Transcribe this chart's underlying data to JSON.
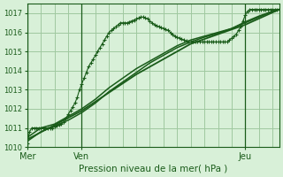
{
  "bg_color": "#d8f0d8",
  "grid_color": "#a0c8a0",
  "line_color": "#1a5c1a",
  "xlabel": "Pression niveau de la mer( hPa )",
  "xlabels": [
    "Mer",
    "Ven",
    "Jeu"
  ],
  "xtick_positions": [
    0,
    48,
    192
  ],
  "ylim": [
    1010,
    1017.5
  ],
  "yticks": [
    1010,
    1011,
    1012,
    1013,
    1014,
    1015,
    1016,
    1017
  ],
  "line1_x": [
    0,
    2,
    4,
    6,
    8,
    10,
    12,
    14,
    16,
    18,
    20,
    22,
    24,
    26,
    28,
    30,
    32,
    34,
    36,
    38,
    40,
    42,
    44,
    46,
    48,
    50,
    52,
    54,
    56,
    58,
    60,
    62,
    64,
    66,
    68,
    70,
    72,
    74,
    76,
    78,
    80,
    82,
    84,
    86,
    88,
    90,
    92,
    94,
    96,
    98,
    100,
    102,
    104,
    106,
    108,
    110,
    112,
    114,
    116,
    118,
    120,
    122,
    124,
    126,
    128,
    130,
    132,
    134,
    136,
    138,
    140,
    142,
    144,
    146,
    148,
    150,
    152,
    154,
    156,
    158,
    160,
    162,
    164,
    166,
    168,
    170,
    172,
    174,
    176,
    178,
    180,
    182,
    184,
    186,
    188,
    190,
    192,
    194,
    196,
    198,
    200,
    202,
    204,
    206,
    208,
    210,
    212,
    214,
    216,
    218,
    220,
    222
  ],
  "line1_y": [
    1010.2,
    1010.8,
    1011.0,
    1011.0,
    1011.0,
    1011.0,
    1011.0,
    1011.0,
    1011.0,
    1011.0,
    1011.0,
    1011.0,
    1011.05,
    1011.1,
    1011.15,
    1011.2,
    1011.3,
    1011.5,
    1011.7,
    1011.9,
    1012.1,
    1012.3,
    1012.6,
    1013.0,
    1013.3,
    1013.6,
    1013.9,
    1014.2,
    1014.4,
    1014.6,
    1014.8,
    1015.0,
    1015.2,
    1015.4,
    1015.6,
    1015.8,
    1016.0,
    1016.1,
    1016.2,
    1016.3,
    1016.4,
    1016.5,
    1016.5,
    1016.5,
    1016.5,
    1016.55,
    1016.6,
    1016.65,
    1016.7,
    1016.75,
    1016.8,
    1016.8,
    1016.75,
    1016.7,
    1016.6,
    1016.5,
    1016.4,
    1016.35,
    1016.3,
    1016.25,
    1016.2,
    1016.15,
    1016.1,
    1016.0,
    1015.9,
    1015.8,
    1015.75,
    1015.7,
    1015.65,
    1015.6,
    1015.55,
    1015.5,
    1015.5,
    1015.5,
    1015.5,
    1015.5,
    1015.5,
    1015.5,
    1015.5,
    1015.5,
    1015.5,
    1015.5,
    1015.5,
    1015.5,
    1015.5,
    1015.5,
    1015.5,
    1015.5,
    1015.5,
    1015.6,
    1015.7,
    1015.8,
    1015.9,
    1016.1,
    1016.3,
    1016.6,
    1016.9,
    1017.1,
    1017.2,
    1017.2,
    1017.2,
    1017.2,
    1017.2,
    1017.2,
    1017.2,
    1017.2,
    1017.2,
    1017.2,
    1017.2,
    1017.2,
    1017.2,
    1017.2
  ],
  "line2_x": [
    0,
    12,
    24,
    36,
    48,
    60,
    72,
    84,
    96,
    108,
    120,
    132,
    144,
    156,
    168,
    180,
    192,
    204,
    216,
    222
  ],
  "line2_y": [
    1010.5,
    1011.0,
    1011.2,
    1011.6,
    1012.0,
    1012.5,
    1013.1,
    1013.6,
    1014.1,
    1014.5,
    1014.9,
    1015.3,
    1015.6,
    1015.8,
    1016.0,
    1016.2,
    1016.5,
    1016.8,
    1017.1,
    1017.2
  ],
  "line3_x": [
    0,
    12,
    24,
    36,
    48,
    60,
    72,
    84,
    96,
    108,
    120,
    132,
    144,
    156,
    168,
    180,
    192,
    204,
    216,
    222
  ],
  "line3_y": [
    1010.3,
    1010.8,
    1011.1,
    1011.4,
    1011.8,
    1012.3,
    1012.9,
    1013.4,
    1013.9,
    1014.4,
    1014.8,
    1015.2,
    1015.5,
    1015.75,
    1015.95,
    1016.2,
    1016.55,
    1016.85,
    1017.1,
    1017.2
  ],
  "line4_x": [
    0,
    48,
    96,
    144,
    192,
    222
  ],
  "line4_y": [
    1010.4,
    1011.9,
    1013.8,
    1015.4,
    1016.4,
    1017.2
  ],
  "vline_positions": [
    0,
    48,
    192
  ],
  "markersize": 3.5
}
